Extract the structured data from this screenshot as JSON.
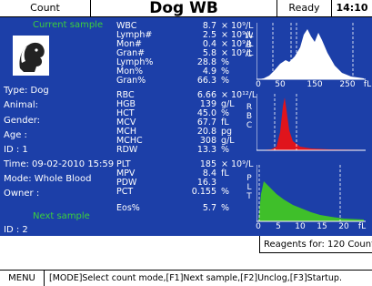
{
  "header": {
    "count": "Count",
    "title": "Dog  WB",
    "status": "Ready",
    "time": "14:10"
  },
  "left": {
    "current_sample": "Current sample",
    "type": "Type: Dog",
    "animal": "Animal:",
    "gender": "Gender:",
    "age": "Age :",
    "id": "ID   : 1",
    "time": "Time: 09-02-2010 15:59",
    "mode": "Mode: Whole Blood",
    "owner": "Owner :",
    "next_sample": "Next sample",
    "next_id": "ID   : 2"
  },
  "params": [
    [
      "WBC",
      "8.7",
      "× 10⁹/L"
    ],
    [
      "Lymph#",
      "2.5",
      "× 10⁹/L"
    ],
    [
      "Mon#",
      "0.4",
      "× 10⁹/L"
    ],
    [
      "Gran#",
      "5.8",
      "× 10⁹/L"
    ],
    [
      "Lymph%",
      "28.8",
      "%"
    ],
    [
      "Mon%",
      "4.9",
      "%"
    ],
    [
      "Gran%",
      "66.3",
      "%"
    ],
    [
      "RBC",
      "6.66",
      "× 10¹²/L"
    ],
    [
      "HGB",
      "139",
      "g/L"
    ],
    [
      "HCT",
      "45.0",
      "%"
    ],
    [
      "MCV",
      "67.7",
      "fL"
    ],
    [
      "MCH",
      "20.8",
      "pg"
    ],
    [
      "MCHC",
      "308",
      "g/L"
    ],
    [
      "RDW",
      "13.3",
      "%"
    ],
    [
      "PLT",
      "185",
      "× 10⁹/L"
    ],
    [
      "MPV",
      "8.4",
      "fL"
    ],
    [
      "PDW",
      "16.3",
      ""
    ],
    [
      "PCT",
      "0.155",
      "%"
    ],
    [
      "Eos%",
      "5.7",
      "%"
    ]
  ],
  "histograms": [
    {
      "label": "WBC",
      "ticks": [
        "0",
        "50",
        "150",
        "250"
      ],
      "unit": "fL"
    },
    {
      "label": "RBC"
    },
    {
      "label": "PLT",
      "ticks": [
        "0",
        "5",
        "10",
        "15",
        "20"
      ],
      "unit": "fL"
    }
  ],
  "footer": {
    "reagents": "Reagents for:  120 Count",
    "menu_label": "MENU",
    "menu_help": "[MODE]Select count mode,[F1]Next sample,[F2]Unclog,[F3]Startup."
  }
}
